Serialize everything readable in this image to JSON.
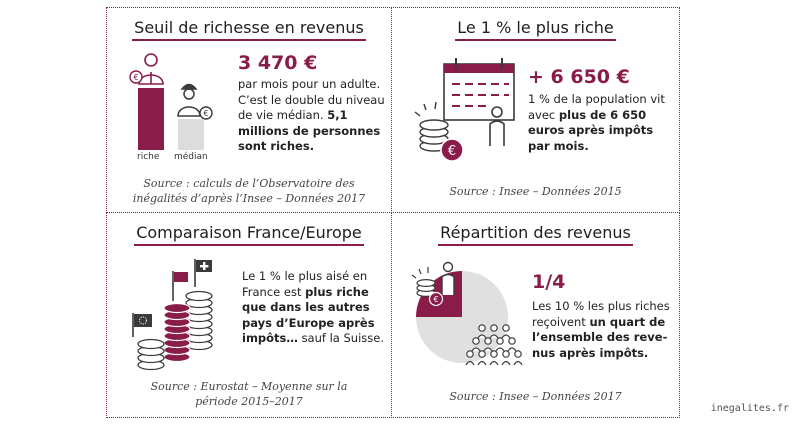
{
  "panel_wealth_threshold": {
    "title": "Seuil de richesse en revenus",
    "figure": "3 470 €",
    "text_plain": "par mois pour un adulte. C’est le double du niveau de vie médian.",
    "text_bold": "5,1 millions de personnes sont riches.",
    "label_rich": "riche",
    "label_median": "médian",
    "source": "Source : calculs de l’Observatoire des inégalités d’après l’Insee – Données 2017"
  },
  "panel_top_one_percent": {
    "title": "Le 1 % le plus riche",
    "figure": "+ 6 650 €",
    "text_plain": "1 % de la population vit avec",
    "text_bold": "plus de 6 650 euros après impôts par mois.",
    "source": "Source : Insee – Données 2015"
  },
  "panel_france_europe": {
    "title": "Comparaison France/Europe",
    "text_plain_1": "Le 1 % le plus aisé en France est",
    "text_bold": "plus riche que dans les autres pays d’Europe après impôts…",
    "text_plain_2": "sauf la Suisse.",
    "source": "Source : Eurostat – Moyenne sur la période 2015–2017"
  },
  "panel_income_distribution": {
    "title": "Répartition des revenus",
    "figure": "1/4",
    "text_plain": "Les 10 % les plus riches reçoivent",
    "text_bold": "un quart de l’ensemble des reve­nus après impôts.",
    "source": "Source : Insee – Données 2017"
  },
  "footer": {
    "site": "inegalites.fr"
  },
  "colors": {
    "accent": "#8a1c4a",
    "grey": "#dcdcdc",
    "ink": "#3a3a3a"
  },
  "icons": [
    "rich-person-icon",
    "median-person-icon",
    "calendar-icon",
    "coin-stack-icon",
    "euro-coin-icon",
    "person-icon",
    "eu-flag-icon",
    "swiss-flag-icon",
    "pie-quarter-icon",
    "crowd-icon"
  ],
  "bars": {
    "rich_value_eur": 3470,
    "median_value_eur": 1735
  },
  "pie": {
    "share": 0.25
  }
}
